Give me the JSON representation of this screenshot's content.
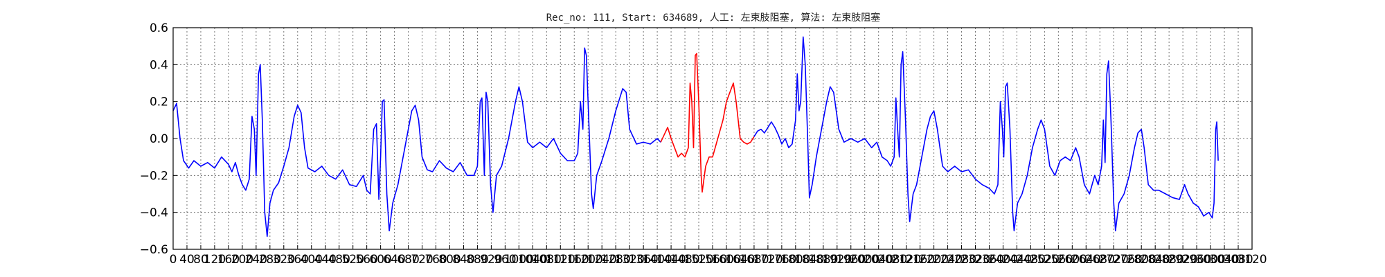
{
  "chart_data": {
    "type": "line",
    "title": "Rec_no: 111, Start: 634689, 人工: 左束肢阻塞, 算法: 左束肢阻塞",
    "xlim": [
      0,
      3120
    ],
    "ylim": [
      -0.6,
      0.6
    ],
    "yticks": [
      -0.6,
      -0.4,
      -0.2,
      0.0,
      0.2,
      0.4,
      0.6
    ],
    "ytick_labels": [
      "−0.6",
      "−0.4",
      "−0.2",
      "0.0",
      "0.2",
      "0.4",
      "0.6"
    ],
    "xticks": [
      0,
      40,
      80,
      120,
      160,
      200,
      240,
      280,
      320,
      360,
      400,
      440,
      480,
      520,
      560,
      600,
      640,
      680,
      720,
      760,
      800,
      840,
      880,
      920,
      960,
      1000,
      1040,
      1080,
      1120,
      1160,
      1200,
      1240,
      1280,
      1320,
      1360,
      1400,
      1440,
      1480,
      1520,
      1560,
      1600,
      1640,
      1680,
      1720,
      1760,
      1800,
      1840,
      1880,
      1920,
      1960,
      2000,
      2040,
      2080,
      2120,
      2160,
      2200,
      2240,
      2280,
      2320,
      2360,
      2400,
      2440,
      2480,
      2520,
      2560,
      2600,
      2640,
      2680,
      2720,
      2760,
      2800,
      2840,
      2880,
      2920,
      2960,
      3000,
      3040,
      3080,
      3120
    ],
    "xtick_labels": [
      "0",
      "40",
      "80",
      "120",
      "160",
      "200",
      "240",
      "280",
      "320",
      "360",
      "400",
      "440",
      "480",
      "520",
      "560",
      "600",
      "640",
      "680",
      "720",
      "760",
      "800",
      "840",
      "880",
      "920",
      "960",
      "1000",
      "1040",
      "1080",
      "1120",
      "1160",
      "1200",
      "1240",
      "1280",
      "1320",
      "1360",
      "1400",
      "1440",
      "1480",
      "1520",
      "1560",
      "1600",
      "1640",
      "1680",
      "1720",
      "1760",
      "1800",
      "1840",
      "1880",
      "1920",
      "1960",
      "2000",
      "2040",
      "2080",
      "2120",
      "2160",
      "2200",
      "2240",
      "2280",
      "2320",
      "2360",
      "2400",
      "2440",
      "2480",
      "2520",
      "2560",
      "2600",
      "2640",
      "2680",
      "2720",
      "2760",
      "2800",
      "2840",
      "2880",
      "2920",
      "2960",
      "3000",
      "3040",
      "3080",
      "3120"
    ],
    "grid": true,
    "series": [
      {
        "color": "#0000ff",
        "points": [
          [
            0,
            0.15
          ],
          [
            10,
            0.19
          ],
          [
            20,
            0.0
          ],
          [
            30,
            -0.12
          ],
          [
            45,
            -0.16
          ],
          [
            60,
            -0.12
          ],
          [
            80,
            -0.15
          ],
          [
            100,
            -0.13
          ],
          [
            120,
            -0.16
          ],
          [
            140,
            -0.1
          ],
          [
            160,
            -0.14
          ],
          [
            170,
            -0.18
          ],
          [
            180,
            -0.13
          ],
          [
            190,
            -0.2
          ],
          [
            200,
            -0.25
          ],
          [
            210,
            -0.28
          ],
          [
            220,
            -0.22
          ],
          [
            228,
            0.12
          ],
          [
            235,
            0.05
          ],
          [
            240,
            -0.2
          ],
          [
            247,
            0.35
          ],
          [
            252,
            0.4
          ],
          [
            258,
            0.1
          ],
          [
            265,
            -0.4
          ],
          [
            272,
            -0.53
          ],
          [
            280,
            -0.35
          ],
          [
            290,
            -0.28
          ],
          [
            305,
            -0.24
          ],
          [
            320,
            -0.15
          ],
          [
            335,
            -0.05
          ],
          [
            350,
            0.12
          ],
          [
            360,
            0.18
          ],
          [
            370,
            0.14
          ],
          [
            380,
            -0.05
          ],
          [
            390,
            -0.16
          ],
          [
            410,
            -0.18
          ],
          [
            430,
            -0.15
          ],
          [
            450,
            -0.2
          ],
          [
            470,
            -0.22
          ],
          [
            490,
            -0.17
          ],
          [
            510,
            -0.25
          ],
          [
            530,
            -0.26
          ],
          [
            550,
            -0.2
          ],
          [
            560,
            -0.28
          ],
          [
            570,
            -0.3
          ],
          [
            580,
            0.05
          ],
          [
            588,
            0.08
          ],
          [
            595,
            -0.33
          ],
          [
            600,
            -0.1
          ],
          [
            605,
            0.2
          ],
          [
            610,
            0.21
          ],
          [
            618,
            -0.3
          ],
          [
            625,
            -0.5
          ],
          [
            635,
            -0.35
          ],
          [
            650,
            -0.25
          ],
          [
            665,
            -0.1
          ],
          [
            680,
            0.05
          ],
          [
            690,
            0.15
          ],
          [
            700,
            0.18
          ],
          [
            710,
            0.1
          ],
          [
            720,
            -0.1
          ],
          [
            735,
            -0.17
          ],
          [
            750,
            -0.18
          ],
          [
            770,
            -0.12
          ],
          [
            790,
            -0.16
          ],
          [
            810,
            -0.18
          ],
          [
            830,
            -0.13
          ],
          [
            850,
            -0.2
          ],
          [
            870,
            -0.2
          ],
          [
            880,
            -0.15
          ],
          [
            888,
            0.2
          ],
          [
            893,
            0.22
          ],
          [
            900,
            -0.2
          ],
          [
            905,
            0.25
          ],
          [
            910,
            0.2
          ],
          [
            918,
            -0.25
          ],
          [
            925,
            -0.4
          ],
          [
            935,
            -0.2
          ],
          [
            950,
            -0.15
          ],
          [
            970,
            0.0
          ],
          [
            990,
            0.2
          ],
          [
            1000,
            0.28
          ],
          [
            1010,
            0.2
          ],
          [
            1025,
            -0.02
          ],
          [
            1040,
            -0.05
          ],
          [
            1060,
            -0.02
          ],
          [
            1080,
            -0.05
          ],
          [
            1100,
            0.0
          ],
          [
            1120,
            -0.08
          ],
          [
            1140,
            -0.12
          ],
          [
            1160,
            -0.12
          ],
          [
            1170,
            -0.08
          ],
          [
            1178,
            0.2
          ],
          [
            1185,
            0.05
          ],
          [
            1190,
            0.49
          ],
          [
            1195,
            0.45
          ],
          [
            1202,
            0.1
          ],
          [
            1210,
            -0.3
          ],
          [
            1215,
            -0.38
          ],
          [
            1225,
            -0.2
          ],
          [
            1240,
            -0.12
          ],
          [
            1260,
            0.0
          ],
          [
            1280,
            0.15
          ],
          [
            1300,
            0.27
          ],
          [
            1310,
            0.25
          ],
          [
            1320,
            0.05
          ],
          [
            1340,
            -0.03
          ],
          [
            1360,
            -0.02
          ],
          [
            1380,
            -0.03
          ],
          [
            1400,
            0.0
          ],
          [
            1410,
            -0.02
          ]
        ]
      },
      {
        "color": "#ff0000",
        "points": [
          [
            1410,
            -0.02
          ],
          [
            1420,
            0.02
          ],
          [
            1430,
            0.06
          ],
          [
            1440,
            0.0
          ],
          [
            1450,
            -0.05
          ],
          [
            1460,
            -0.1
          ],
          [
            1470,
            -0.08
          ],
          [
            1480,
            -0.1
          ],
          [
            1490,
            -0.05
          ],
          [
            1495,
            0.3
          ],
          [
            1500,
            0.2
          ],
          [
            1505,
            -0.05
          ],
          [
            1510,
            0.45
          ],
          [
            1514,
            0.46
          ],
          [
            1520,
            0.2
          ],
          [
            1527,
            -0.2
          ],
          [
            1530,
            -0.29
          ],
          [
            1540,
            -0.15
          ],
          [
            1550,
            -0.1
          ],
          [
            1560,
            -0.1
          ],
          [
            1575,
            0.0
          ],
          [
            1590,
            0.1
          ],
          [
            1600,
            0.2
          ],
          [
            1610,
            0.25
          ],
          [
            1620,
            0.3
          ],
          [
            1628,
            0.2
          ],
          [
            1640,
            0.0
          ],
          [
            1650,
            -0.02
          ],
          [
            1660,
            -0.03
          ],
          [
            1670,
            -0.02
          ],
          [
            1680,
            0.01
          ]
        ]
      },
      {
        "color": "#0000ff",
        "points": [
          [
            1680,
            0.01
          ],
          [
            1690,
            0.04
          ],
          [
            1700,
            0.05
          ],
          [
            1710,
            0.03
          ],
          [
            1720,
            0.06
          ],
          [
            1730,
            0.09
          ],
          [
            1740,
            0.06
          ],
          [
            1750,
            0.02
          ],
          [
            1760,
            -0.03
          ],
          [
            1770,
            0.0
          ],
          [
            1780,
            -0.05
          ],
          [
            1790,
            -0.03
          ],
          [
            1800,
            0.1
          ],
          [
            1805,
            0.35
          ],
          [
            1810,
            0.15
          ],
          [
            1815,
            0.2
          ],
          [
            1822,
            0.55
          ],
          [
            1828,
            0.4
          ],
          [
            1835,
            0.0
          ],
          [
            1840,
            -0.32
          ],
          [
            1848,
            -0.25
          ],
          [
            1860,
            -0.1
          ],
          [
            1875,
            0.05
          ],
          [
            1890,
            0.2
          ],
          [
            1900,
            0.28
          ],
          [
            1910,
            0.25
          ],
          [
            1925,
            0.05
          ],
          [
            1940,
            -0.02
          ],
          [
            1960,
            0.0
          ],
          [
            1980,
            -0.02
          ],
          [
            2000,
            0.0
          ],
          [
            2020,
            -0.05
          ],
          [
            2035,
            -0.02
          ],
          [
            2050,
            -0.1
          ],
          [
            2065,
            -0.12
          ],
          [
            2075,
            -0.15
          ],
          [
            2085,
            -0.1
          ],
          [
            2090,
            0.22
          ],
          [
            2095,
            0.05
          ],
          [
            2100,
            -0.1
          ],
          [
            2105,
            0.4
          ],
          [
            2110,
            0.47
          ],
          [
            2118,
            0.1
          ],
          [
            2125,
            -0.3
          ],
          [
            2130,
            -0.45
          ],
          [
            2140,
            -0.3
          ],
          [
            2150,
            -0.25
          ],
          [
            2165,
            -0.1
          ],
          [
            2180,
            0.05
          ],
          [
            2190,
            0.12
          ],
          [
            2200,
            0.15
          ],
          [
            2210,
            0.05
          ],
          [
            2225,
            -0.15
          ],
          [
            2240,
            -0.18
          ],
          [
            2260,
            -0.15
          ],
          [
            2280,
            -0.18
          ],
          [
            2300,
            -0.17
          ],
          [
            2320,
            -0.22
          ],
          [
            2340,
            -0.25
          ],
          [
            2360,
            -0.27
          ],
          [
            2375,
            -0.3
          ],
          [
            2385,
            -0.25
          ],
          [
            2392,
            0.2
          ],
          [
            2398,
            0.05
          ],
          [
            2402,
            -0.1
          ],
          [
            2407,
            0.28
          ],
          [
            2412,
            0.3
          ],
          [
            2420,
            0.05
          ],
          [
            2428,
            -0.4
          ],
          [
            2432,
            -0.5
          ],
          [
            2442,
            -0.35
          ],
          [
            2455,
            -0.3
          ],
          [
            2470,
            -0.2
          ],
          [
            2485,
            -0.05
          ],
          [
            2500,
            0.05
          ],
          [
            2510,
            0.1
          ],
          [
            2520,
            0.05
          ],
          [
            2535,
            -0.15
          ],
          [
            2550,
            -0.2
          ],
          [
            2565,
            -0.12
          ],
          [
            2580,
            -0.1
          ],
          [
            2595,
            -0.12
          ],
          [
            2610,
            -0.05
          ],
          [
            2620,
            -0.1
          ],
          [
            2635,
            -0.25
          ],
          [
            2650,
            -0.3
          ],
          [
            2665,
            -0.2
          ],
          [
            2675,
            -0.25
          ],
          [
            2685,
            -0.15
          ],
          [
            2690,
            0.1
          ],
          [
            2695,
            -0.13
          ],
          [
            2700,
            0.35
          ],
          [
            2705,
            0.42
          ],
          [
            2712,
            0.1
          ],
          [
            2720,
            -0.35
          ],
          [
            2725,
            -0.5
          ],
          [
            2735,
            -0.35
          ],
          [
            2750,
            -0.3
          ],
          [
            2765,
            -0.2
          ],
          [
            2780,
            -0.05
          ],
          [
            2790,
            0.03
          ],
          [
            2800,
            0.05
          ],
          [
            2808,
            -0.05
          ],
          [
            2820,
            -0.25
          ],
          [
            2835,
            -0.28
          ],
          [
            2850,
            -0.28
          ],
          [
            2870,
            -0.3
          ],
          [
            2890,
            -0.32
          ],
          [
            2910,
            -0.33
          ],
          [
            2925,
            -0.25
          ],
          [
            2935,
            -0.3
          ],
          [
            2950,
            -0.35
          ],
          [
            2965,
            -0.37
          ],
          [
            2980,
            -0.42
          ],
          [
            2995,
            -0.4
          ],
          [
            3005,
            -0.43
          ],
          [
            3010,
            -0.35
          ],
          [
            3015,
            0.05
          ],
          [
            3018,
            0.09
          ],
          [
            3022,
            -0.12
          ]
        ]
      }
    ]
  }
}
